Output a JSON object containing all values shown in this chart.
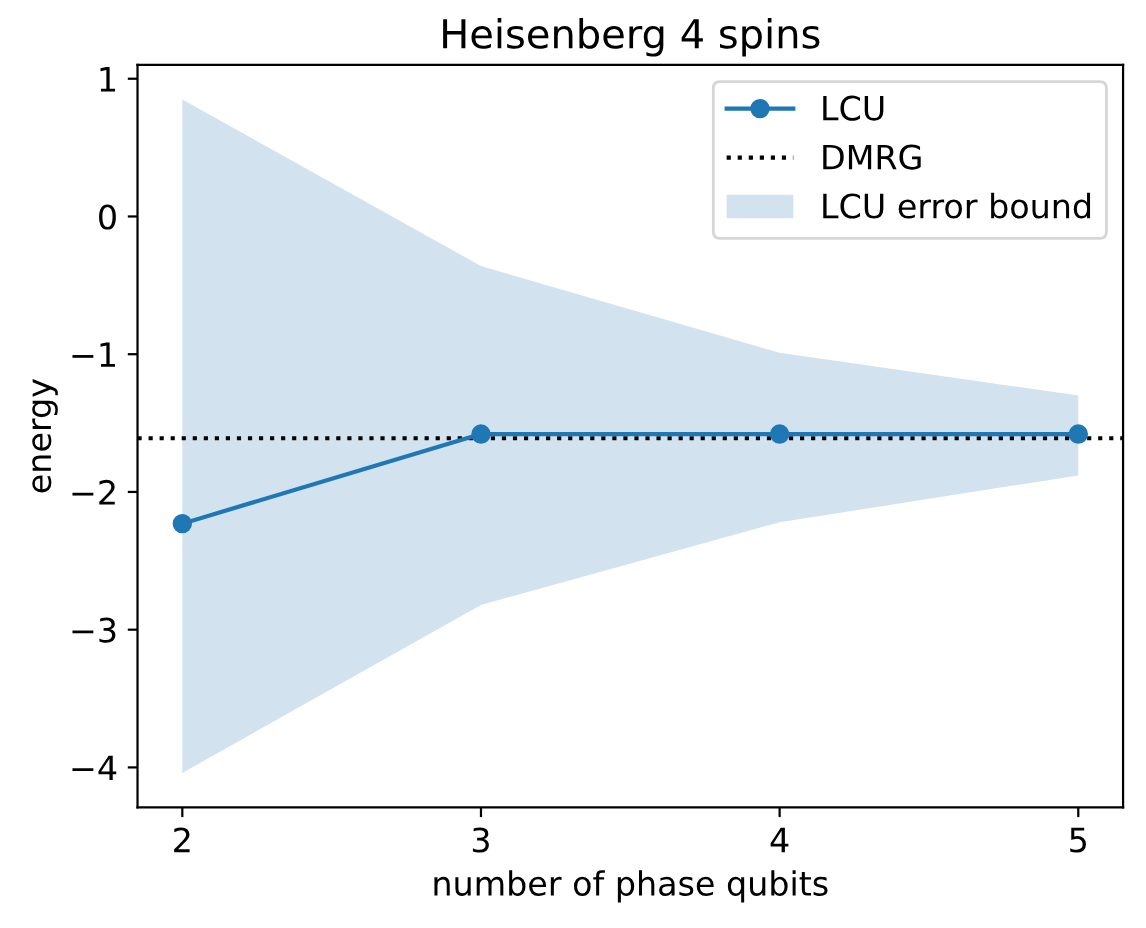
{
  "chart_data": {
    "type": "line",
    "title": "Heisenberg 4 spins",
    "xlabel": "number of phase qubits",
    "ylabel": "energy",
    "x": [
      2,
      3,
      4,
      5
    ],
    "series": [
      {
        "name": "LCU",
        "color": "#1f77b4",
        "values": [
          -2.23,
          -1.58,
          -1.58,
          -1.58
        ]
      },
      {
        "name": "LCU error bound",
        "type": "area",
        "color": "#d2e2ef",
        "values": [
          null,
          null,
          null,
          null
        ],
        "lower": [
          -4.04,
          -2.82,
          -2.22,
          -1.88
        ],
        "upper": [
          0.85,
          -0.36,
          -0.99,
          -1.3
        ]
      }
    ],
    "ref_lines": [
      {
        "axis": "y",
        "value": -1.61,
        "label": "DMRG",
        "color": "#000000",
        "line_style": "dotted"
      }
    ],
    "marker": "circle",
    "line_style": "solid",
    "xlim": [
      1.85,
      5.15
    ],
    "xticks": [
      2,
      3,
      4,
      5
    ],
    "ylim": [
      -4.29,
      1.1
    ],
    "yticks": [
      -4,
      -3,
      -2,
      -1,
      0,
      1
    ],
    "grid": false,
    "legend": "top right"
  }
}
